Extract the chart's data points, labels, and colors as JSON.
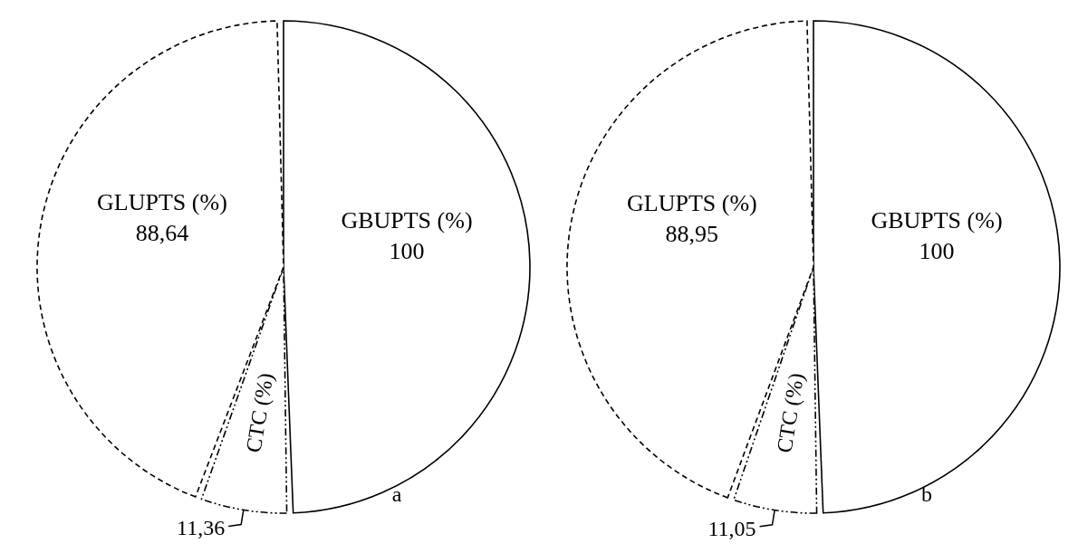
{
  "chart_data": [
    {
      "type": "pie",
      "categories": [
        "GBUPTS (%)",
        "CTC (%)",
        "GLUPTS (%)"
      ],
      "values": [
        100,
        11.36,
        88.64
      ],
      "value_labels": [
        "100",
        "11,36",
        "88,64"
      ],
      "colors": [
        "#ffffff",
        "#ffffff",
        "#ffffff"
      ],
      "annotations": [
        "a"
      ]
    },
    {
      "type": "pie",
      "categories": [
        "GBUPTS (%)",
        "CTC (%)",
        "GLUPTS (%)"
      ],
      "values": [
        100,
        11.05,
        88.95
      ],
      "value_labels": [
        "100",
        "11,05",
        "88,95"
      ],
      "colors": [
        "#ffffff",
        "#ffffff",
        "#ffffff"
      ],
      "annotations": [
        "b"
      ]
    }
  ]
}
